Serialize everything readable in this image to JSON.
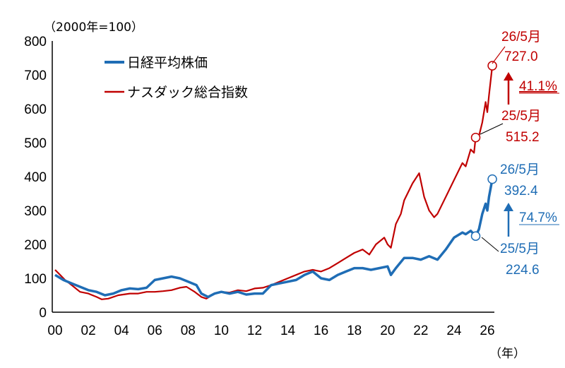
{
  "chart_data": {
    "type": "line",
    "unit_label": "（2000年=100）",
    "x_unit_label": "（年）",
    "ylim": [
      0,
      800
    ],
    "y_ticks": [
      "0",
      "100",
      "200",
      "300",
      "400",
      "500",
      "600",
      "700",
      "800"
    ],
    "x_ticks": [
      "00",
      "02",
      "04",
      "06",
      "08",
      "10",
      "12",
      "14",
      "16",
      "18",
      "20",
      "22",
      "24",
      "26"
    ],
    "legend_position": "top-left",
    "grid": false,
    "series": [
      {
        "name": "日経平均株価",
        "color": "#1f6db5",
        "x": [
          2000.0,
          2000.5,
          2001.0,
          2001.5,
          2002.0,
          2002.5,
          2003.0,
          2003.5,
          2004.0,
          2004.5,
          2005.0,
          2005.5,
          2006.0,
          2006.5,
          2007.0,
          2007.5,
          2008.0,
          2008.5,
          2008.8,
          2009.2,
          2009.6,
          2010.0,
          2010.5,
          2011.0,
          2011.5,
          2012.0,
          2012.5,
          2013.0,
          2013.5,
          2014.0,
          2014.5,
          2015.0,
          2015.5,
          2016.0,
          2016.5,
          2017.0,
          2017.5,
          2018.0,
          2018.5,
          2019.0,
          2019.5,
          2020.0,
          2020.2,
          2020.5,
          2021.0,
          2021.5,
          2022.0,
          2022.5,
          2023.0,
          2023.5,
          2024.0,
          2024.5,
          2024.7,
          2025.0,
          2025.3,
          2025.5,
          2025.7,
          2025.9,
          2026.0,
          2026.1,
          2026.3
        ],
        "y": [
          110,
          95,
          85,
          75,
          65,
          60,
          50,
          55,
          65,
          70,
          68,
          72,
          95,
          100,
          105,
          100,
          90,
          80,
          55,
          45,
          55,
          60,
          55,
          60,
          52,
          55,
          55,
          80,
          85,
          90,
          95,
          110,
          120,
          100,
          95,
          110,
          120,
          130,
          130,
          125,
          130,
          135,
          110,
          130,
          160,
          160,
          155,
          165,
          155,
          185,
          220,
          235,
          230,
          240,
          224.6,
          245,
          290,
          320,
          300,
          340,
          392.4
        ],
        "annotation_start": {
          "label": "25/5月",
          "value": "224.6",
          "x": 2025.3,
          "y": 224.6
        },
        "annotation_end": {
          "label": "26/5月",
          "value": "392.4",
          "x": 2026.3,
          "y": 392.4
        },
        "change_pct": "74.7%"
      },
      {
        "name": "ナスダック総合指数",
        "color": "#c00000",
        "x": [
          2000.0,
          2000.3,
          2000.6,
          2001.0,
          2001.5,
          2002.0,
          2002.5,
          2002.8,
          2003.2,
          2003.8,
          2004.5,
          2005.0,
          2005.5,
          2006.0,
          2006.5,
          2007.0,
          2007.5,
          2007.9,
          2008.4,
          2008.8,
          2009.1,
          2009.6,
          2010.0,
          2010.5,
          2011.0,
          2011.5,
          2012.0,
          2012.5,
          2013.0,
          2013.5,
          2014.0,
          2014.5,
          2015.0,
          2015.5,
          2016.0,
          2016.5,
          2017.0,
          2017.5,
          2018.0,
          2018.5,
          2018.9,
          2019.3,
          2019.8,
          2020.0,
          2020.2,
          2020.5,
          2020.8,
          2021.0,
          2021.5,
          2021.9,
          2022.2,
          2022.5,
          2022.8,
          2023.0,
          2023.5,
          2024.0,
          2024.5,
          2024.7,
          2025.0,
          2025.2,
          2025.3,
          2025.5,
          2025.7,
          2025.9,
          2026.0,
          2026.1,
          2026.3
        ],
        "y": [
          125,
          110,
          95,
          80,
          60,
          55,
          45,
          38,
          40,
          50,
          55,
          55,
          60,
          60,
          62,
          65,
          72,
          75,
          60,
          45,
          40,
          55,
          60,
          58,
          65,
          62,
          70,
          72,
          80,
          90,
          100,
          110,
          120,
          125,
          120,
          130,
          145,
          160,
          175,
          185,
          170,
          200,
          220,
          200,
          190,
          260,
          290,
          330,
          380,
          410,
          340,
          300,
          280,
          290,
          340,
          390,
          440,
          430,
          480,
          470,
          515.2,
          520,
          560,
          620,
          590,
          640,
          727.0
        ],
        "annotation_start": {
          "label": "25/5月",
          "value": "515.2",
          "x": 2025.3,
          "y": 515.2
        },
        "annotation_end": {
          "label": "26/5月",
          "value": "727.0",
          "x": 2026.3,
          "y": 727.0
        },
        "change_pct": "41.1%"
      }
    ]
  }
}
